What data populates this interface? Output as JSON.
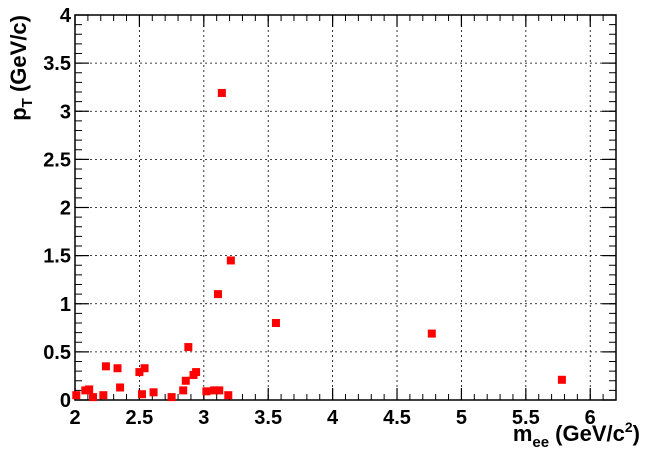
{
  "chart_data": {
    "type": "scatter",
    "title": "",
    "xlabel": {
      "main": "m",
      "sub": "ee",
      "pre_unit": " (GeV/c",
      "sup": "2",
      "post_unit": ")"
    },
    "ylabel": {
      "main": "p",
      "sub": "T",
      "unit": " (GeV/c)"
    },
    "xlim": [
      2,
      6.2
    ],
    "ylim": [
      0,
      4
    ],
    "x_ticks": [
      2,
      2.5,
      3,
      3.5,
      4,
      4.5,
      5,
      5.5,
      6
    ],
    "x_tick_labels": [
      "2",
      "2.5",
      "3",
      "3.5",
      "4",
      "4.5",
      "5",
      "5.5",
      "6"
    ],
    "y_ticks": [
      0,
      0.5,
      1,
      1.5,
      2,
      2.5,
      3,
      3.5,
      4
    ],
    "y_tick_labels": [
      "0",
      "0.5",
      "1",
      "1.5",
      "2",
      "2.5",
      "3",
      "3.5",
      "4"
    ],
    "grid": true,
    "marker_color": "#ff0000",
    "series": [
      {
        "points": [
          {
            "x": 2.01,
            "y": 0.05
          },
          {
            "x": 2.08,
            "y": 0.1
          },
          {
            "x": 2.11,
            "y": 0.11
          },
          {
            "x": 2.14,
            "y": 0.03
          },
          {
            "x": 2.22,
            "y": 0.05
          },
          {
            "x": 2.24,
            "y": 0.35
          },
          {
            "x": 2.33,
            "y": 0.33
          },
          {
            "x": 2.35,
            "y": 0.13
          },
          {
            "x": 2.5,
            "y": 0.29
          },
          {
            "x": 2.52,
            "y": 0.06
          },
          {
            "x": 2.54,
            "y": 0.33
          },
          {
            "x": 2.61,
            "y": 0.08
          },
          {
            "x": 2.75,
            "y": 0.03
          },
          {
            "x": 2.84,
            "y": 0.1
          },
          {
            "x": 2.86,
            "y": 0.2
          },
          {
            "x": 2.88,
            "y": 0.55
          },
          {
            "x": 2.92,
            "y": 0.26
          },
          {
            "x": 2.94,
            "y": 0.29
          },
          {
            "x": 3.02,
            "y": 0.09
          },
          {
            "x": 3.08,
            "y": 0.1
          },
          {
            "x": 3.11,
            "y": 1.1
          },
          {
            "x": 3.12,
            "y": 0.1
          },
          {
            "x": 3.14,
            "y": 3.19
          },
          {
            "x": 3.19,
            "y": 0.05
          },
          {
            "x": 3.21,
            "y": 1.45
          },
          {
            "x": 3.56,
            "y": 0.8
          },
          {
            "x": 4.77,
            "y": 0.69
          },
          {
            "x": 5.78,
            "y": 0.21
          }
        ]
      }
    ]
  }
}
